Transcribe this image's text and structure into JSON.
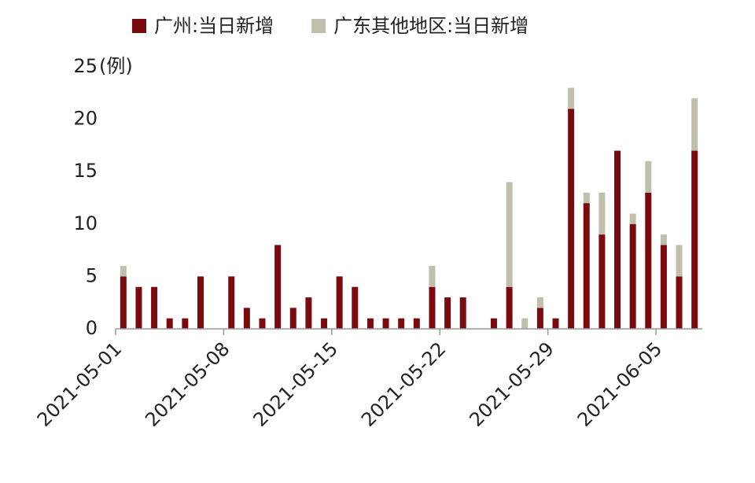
{
  "chart_data": {
    "type": "stacked_bar",
    "y_unit": "(例)",
    "categories": [
      "2021-05-01",
      null,
      null,
      null,
      null,
      null,
      null,
      "2021-05-08",
      null,
      null,
      null,
      null,
      null,
      null,
      "2021-05-15",
      null,
      null,
      null,
      null,
      null,
      null,
      "2021-05-22",
      null,
      null,
      null,
      null,
      null,
      null,
      "2021-05-29",
      null,
      null,
      null,
      null,
      null,
      null,
      "2021-06-05",
      null,
      null
    ],
    "series": [
      {
        "name": "广州:当日新增",
        "color": "#7a0a0e",
        "values": [
          5,
          4,
          4,
          1,
          1,
          5,
          0,
          5,
          2,
          1,
          8,
          2,
          3,
          1,
          5,
          4,
          1,
          1,
          1,
          1,
          4,
          3,
          3,
          0,
          1,
          4,
          0,
          2,
          1,
          21,
          12,
          9,
          17,
          10,
          13,
          8,
          5,
          17
        ]
      },
      {
        "name": "广东其他地区:当日新增",
        "color": "#bfbfab",
        "values": [
          1,
          0,
          0,
          0,
          0,
          0,
          0,
          0,
          0,
          0,
          0,
          0,
          0,
          0,
          0,
          0,
          0,
          0,
          0,
          0,
          2,
          0,
          0,
          0,
          0,
          10,
          1,
          1,
          0,
          2,
          1,
          4,
          0,
          1,
          3,
          1,
          3,
          5
        ]
      }
    ],
    "ylim": [
      0,
      25
    ],
    "yticks": [
      0,
      5,
      10,
      15,
      20,
      25
    ],
    "grid": false,
    "legend": "top"
  }
}
